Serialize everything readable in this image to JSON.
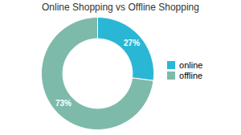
{
  "chart_data": {
    "type": "donut",
    "title": "Online Shopping vs Offline Shopping",
    "categories": [
      "online",
      "offline"
    ],
    "values": [
      27,
      73
    ],
    "colors": [
      "#29b7d5",
      "#7dbaaa"
    ],
    "value_labels": [
      "27%",
      "73%"
    ],
    "data_labels": true,
    "legend": "right"
  }
}
